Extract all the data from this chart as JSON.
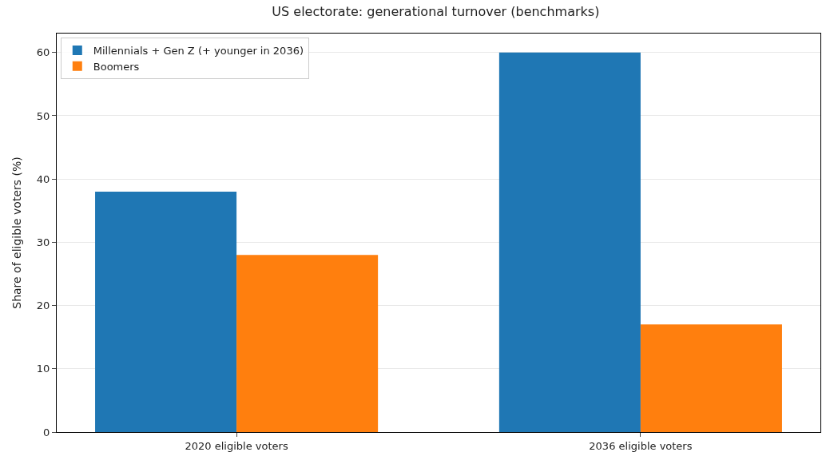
{
  "chart_data": {
    "type": "bar",
    "title": "US electorate: generational turnover (benchmarks)",
    "ylabel": "Share of eligible voters (%)",
    "categories": [
      "2020 eligible voters",
      "2036 eligible voters"
    ],
    "series": [
      {
        "name": "Millennials + Gen Z (+ younger in 2036)",
        "color": "#1f77b4",
        "values": [
          38,
          60
        ]
      },
      {
        "name": "Boomers",
        "color": "#ff7f0e",
        "values": [
          28,
          17
        ]
      }
    ],
    "ylim": [
      0,
      63
    ],
    "yticks": [
      0,
      10,
      20,
      30,
      40,
      50,
      60
    ],
    "grid": "y",
    "legend": "top left"
  }
}
